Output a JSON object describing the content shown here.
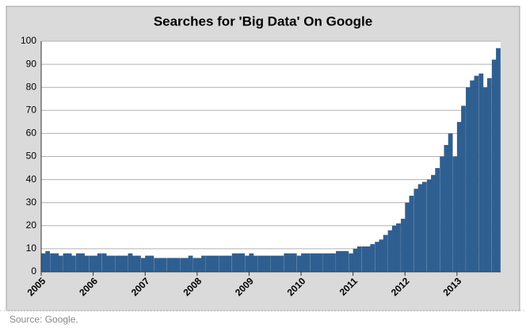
{
  "chart_data": {
    "type": "bar",
    "title": "Searches for 'Big Data' On Google",
    "source": "Source: Google.",
    "color": "#2f5f91",
    "grid": true,
    "x": [
      2005,
      2005.08,
      2005.17,
      2005.25,
      2005.33,
      2005.42,
      2005.5,
      2005.58,
      2005.67,
      2005.75,
      2005.83,
      2005.92,
      2006,
      2006.08,
      2006.17,
      2006.25,
      2006.33,
      2006.42,
      2006.5,
      2006.58,
      2006.67,
      2006.75,
      2006.83,
      2006.92,
      2007,
      2007.08,
      2007.17,
      2007.25,
      2007.33,
      2007.42,
      2007.5,
      2007.58,
      2007.67,
      2007.75,
      2007.83,
      2007.92,
      2008,
      2008.08,
      2008.17,
      2008.25,
      2008.33,
      2008.42,
      2008.5,
      2008.58,
      2008.67,
      2008.75,
      2008.83,
      2008.92,
      2009,
      2009.08,
      2009.17,
      2009.25,
      2009.33,
      2009.42,
      2009.5,
      2009.58,
      2009.67,
      2009.75,
      2009.83,
      2009.92,
      2010,
      2010.08,
      2010.17,
      2010.25,
      2010.33,
      2010.42,
      2010.5,
      2010.58,
      2010.67,
      2010.75,
      2010.83,
      2010.92,
      2011,
      2011.08,
      2011.17,
      2011.25,
      2011.33,
      2011.42,
      2011.5,
      2011.58,
      2011.67,
      2011.75,
      2011.83,
      2011.92,
      2012,
      2012.08,
      2012.17,
      2012.25,
      2012.33,
      2012.42,
      2012.5,
      2012.58,
      2012.67,
      2012.75,
      2012.83,
      2012.92,
      2013,
      2013.08,
      2013.17,
      2013.25,
      2013.33,
      2013.42,
      2013.5,
      2013.58,
      2013.67,
      2013.75
    ],
    "values": [
      8,
      9,
      8,
      8,
      7,
      8,
      8,
      7,
      8,
      8,
      7,
      7,
      7,
      8,
      8,
      7,
      7,
      7,
      7,
      7,
      8,
      7,
      7,
      6,
      7,
      7,
      6,
      6,
      6,
      6,
      6,
      6,
      6,
      6,
      7,
      6,
      6,
      7,
      7,
      7,
      7,
      7,
      7,
      7,
      8,
      8,
      8,
      7,
      8,
      7,
      7,
      7,
      7,
      7,
      7,
      7,
      8,
      8,
      8,
      7,
      8,
      8,
      8,
      8,
      8,
      8,
      8,
      8,
      9,
      9,
      9,
      8,
      10,
      11,
      11,
      11,
      12,
      13,
      14,
      16,
      18,
      20,
      21,
      23,
      30,
      33,
      36,
      38,
      39,
      40,
      42,
      45,
      50,
      55,
      60,
      50,
      65,
      72,
      80,
      83,
      85,
      86,
      80,
      84,
      92,
      97
    ],
    "xlim": [
      2005,
      2013.84
    ],
    "xticks": [
      2005,
      2006,
      2007,
      2008,
      2009,
      2010,
      2011,
      2012,
      2013
    ],
    "ylim": [
      0,
      100
    ],
    "yticks": [
      0,
      10,
      20,
      30,
      40,
      50,
      60,
      70,
      80,
      90,
      100
    ]
  }
}
